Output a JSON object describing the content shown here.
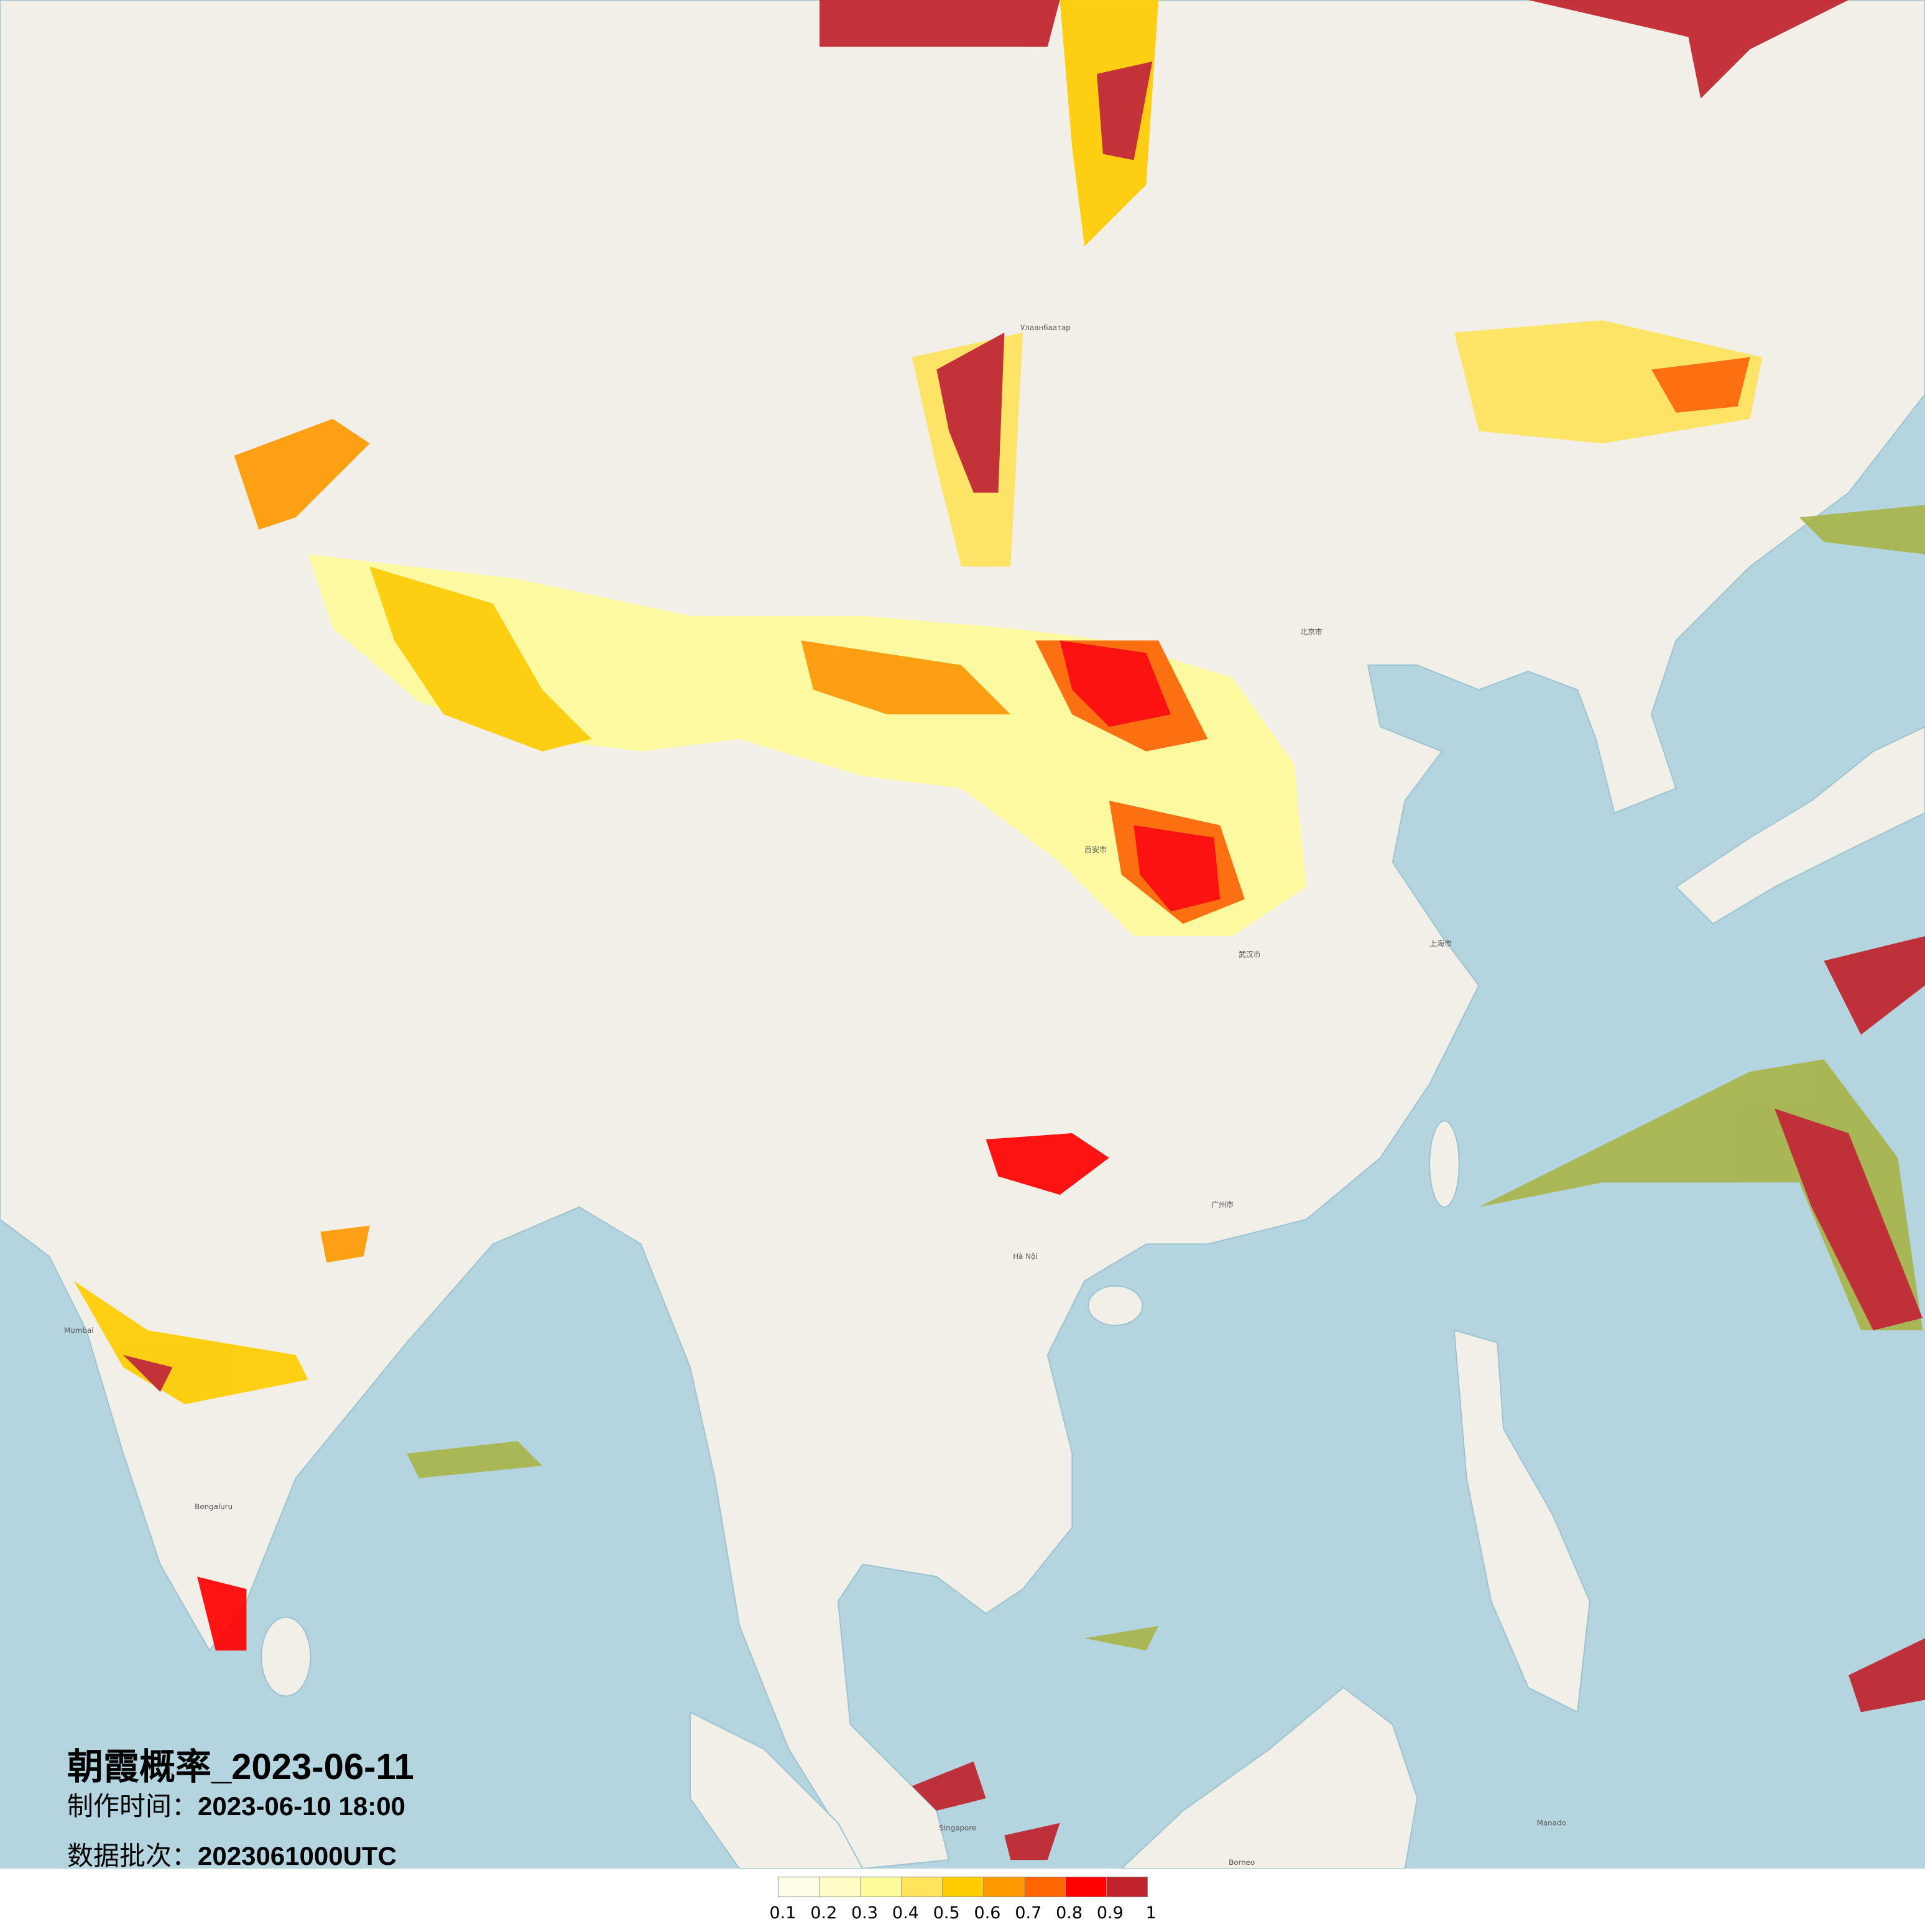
{
  "title": "朝霞概率_2023-06-11",
  "make_time": {
    "label": "制作时间：",
    "value": "2023-06-10 18:00"
  },
  "data_batch": {
    "label": "数据批次：",
    "value": "2023061000UTC"
  },
  "colors": {
    "land": "#f2efe9",
    "sea": "#b4d4df",
    "border": "#c9a0c8"
  },
  "legend": {
    "labels": [
      "0.1",
      "0.2",
      "0.3",
      "0.4",
      "0.5",
      "0.6",
      "0.7",
      "0.8",
      "0.9",
      "1"
    ],
    "colors": [
      "#fffde8",
      "#fffcc6",
      "#fffa9a",
      "#ffe45c",
      "#ffcc00",
      "#ff9900",
      "#ff6600",
      "#ff0000",
      "#c0232b"
    ]
  },
  "places": [
    {
      "name": "Улаанбаатар"
    },
    {
      "name": "北京市"
    },
    {
      "name": "西安市"
    },
    {
      "name": "武汉市"
    },
    {
      "name": "广州市"
    },
    {
      "name": "上海市"
    },
    {
      "name": "Hà Nội"
    },
    {
      "name": "Bengaluru"
    },
    {
      "name": "Mumbai"
    },
    {
      "name": "Singapore"
    },
    {
      "name": "Manado"
    },
    {
      "name": "Borneo"
    }
  ]
}
